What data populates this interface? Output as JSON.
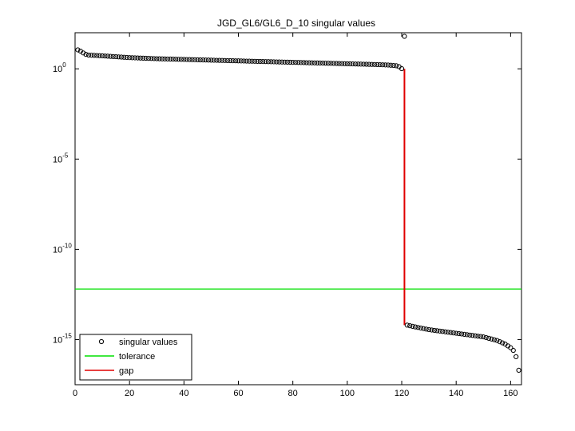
{
  "chart_data": {
    "type": "scatter",
    "title": "JGD_GL6/GL6_D_10 singular values",
    "xlabel": "",
    "ylabel": "",
    "xlim": [
      0,
      164
    ],
    "x_ticks": [
      0,
      20,
      40,
      60,
      80,
      100,
      120,
      140,
      160
    ],
    "yscale": "log",
    "ylim_exponent": [
      -17.5,
      2
    ],
    "y_ticks": [
      {
        "base": "10",
        "exp": "0",
        "value": 1
      },
      {
        "base": "10",
        "exp": "-5",
        "value": 1e-05
      },
      {
        "base": "10",
        "exp": "-10",
        "value": 1e-10
      },
      {
        "base": "10",
        "exp": "-15",
        "value": 1e-15
      }
    ],
    "grid": false,
    "legend_position": "bottom-left",
    "legend": [
      {
        "label": "singular values",
        "marker": "circle",
        "color": "#000000"
      },
      {
        "label": "tolerance",
        "marker": "line",
        "color": "#00e000"
      },
      {
        "label": "gap",
        "marker": "line",
        "color": "#e00000"
      }
    ],
    "series": [
      {
        "name": "singular values",
        "color": "#000000",
        "description_points": [
          [
            1,
            1.05
          ],
          [
            2,
            0.98
          ],
          [
            3,
            0.88
          ],
          [
            4,
            0.8
          ],
          [
            5,
            0.76
          ],
          [
            10,
            0.72
          ],
          [
            20,
            0.62
          ],
          [
            30,
            0.56
          ],
          [
            40,
            0.52
          ],
          [
            50,
            0.48
          ],
          [
            60,
            0.44
          ],
          [
            70,
            0.4
          ],
          [
            80,
            0.36
          ],
          [
            90,
            0.32
          ],
          [
            100,
            0.28
          ],
          [
            110,
            0.24
          ],
          [
            115,
            0.21
          ],
          [
            118,
            0.17
          ],
          [
            119,
            0.12
          ],
          [
            120,
            0.01
          ],
          [
            121,
            1.8
          ],
          [
            122,
            -14.2
          ],
          [
            125,
            -14.3
          ],
          [
            130,
            -14.45
          ],
          [
            140,
            -14.65
          ],
          [
            150,
            -14.85
          ],
          [
            155,
            -15.05
          ],
          [
            158,
            -15.25
          ],
          [
            160,
            -15.45
          ],
          [
            161,
            -15.6
          ],
          [
            162,
            -15.95
          ],
          [
            163,
            -16.7
          ]
        ]
      },
      {
        "name": "tolerance",
        "color": "#00e000",
        "value_exponent": -12.2
      },
      {
        "name": "gap",
        "color": "#e00000",
        "x": 121,
        "from_exponent": 0,
        "to_exponent": -14.2
      }
    ]
  }
}
